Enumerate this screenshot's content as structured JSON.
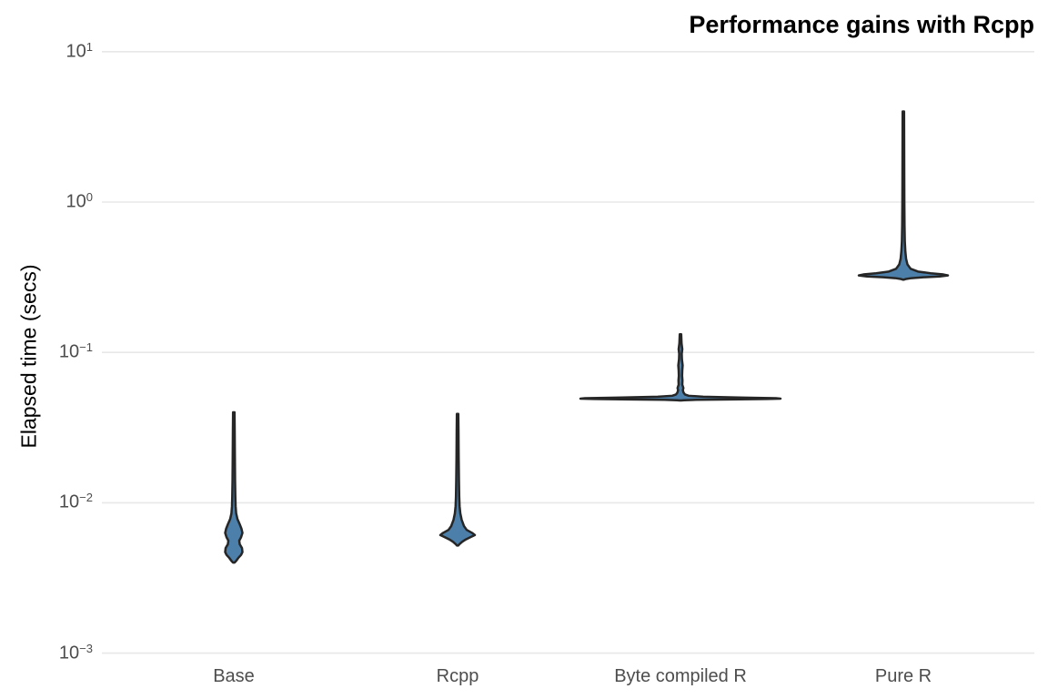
{
  "title": "Performance gains with Rcpp",
  "y_axis": {
    "label": "Elapsed time (secs)",
    "tick_base": "10",
    "ticks": [
      {
        "exponent_display": "1",
        "value": 10
      },
      {
        "exponent_display": "0",
        "value": 1
      },
      {
        "exponent_display": "−1",
        "value": 0.1
      },
      {
        "exponent_display": "−2",
        "value": 0.01
      },
      {
        "exponent_display": "−3",
        "value": 0.001
      }
    ]
  },
  "x_axis": {
    "categories": [
      "Base",
      "Rcpp",
      "Byte compiled R",
      "Pure R"
    ]
  },
  "colors": {
    "violin_fill": "#4c7fa9",
    "violin_stroke": "#262626",
    "gridline": "#e8e8e8",
    "tick_text": "#4d4d4d",
    "title_text": "#000000",
    "background": "#ffffff"
  },
  "chart_data": {
    "type": "violin",
    "title": "Performance gains with Rcpp",
    "xlabel": "",
    "ylabel": "Elapsed time (secs)",
    "yscale": "log10",
    "ylim": [
      0.001,
      10
    ],
    "grid": "major-horizontal-only",
    "legend": "none",
    "categories": [
      "Base",
      "Rcpp",
      "Byte compiled R",
      "Pure R"
    ],
    "series": [
      {
        "name": "Base",
        "min_secs": 0.004,
        "max_secs": 0.04,
        "density_peaks_secs": [
          0.0063,
          0.0049
        ],
        "shape": "thin tail up to 0.04, bimodal double bulge near 0.005-0.0065",
        "profile_value_halfwidth": [
          [
            0.04,
            0.8
          ],
          [
            0.03,
            1.0
          ],
          [
            0.02,
            1.2
          ],
          [
            0.014,
            1.4
          ],
          [
            0.011,
            1.7
          ],
          [
            0.0095,
            2.0
          ],
          [
            0.0085,
            2.6
          ],
          [
            0.0078,
            4.0
          ],
          [
            0.0072,
            6.5
          ],
          [
            0.0067,
            8.5
          ],
          [
            0.0063,
            9.5
          ],
          [
            0.0059,
            8.0
          ],
          [
            0.0056,
            6.0
          ],
          [
            0.0053,
            6.5
          ],
          [
            0.005,
            9.0
          ],
          [
            0.0047,
            9.5
          ],
          [
            0.0045,
            8.0
          ],
          [
            0.0043,
            5.0
          ],
          [
            0.0041,
            2.5
          ],
          [
            0.004,
            0.8
          ]
        ]
      },
      {
        "name": "Rcpp",
        "min_secs": 0.0052,
        "max_secs": 0.039,
        "density_peaks_secs": [
          0.0061
        ],
        "shape": "thin tail up to 0.039, single wide pointed bulge near 0.006",
        "profile_value_halfwidth": [
          [
            0.039,
            0.8
          ],
          [
            0.03,
            1.0
          ],
          [
            0.02,
            1.2
          ],
          [
            0.014,
            1.5
          ],
          [
            0.011,
            1.8
          ],
          [
            0.0095,
            2.2
          ],
          [
            0.0085,
            3.0
          ],
          [
            0.0077,
            4.5
          ],
          [
            0.007,
            7.0
          ],
          [
            0.0066,
            10.0
          ],
          [
            0.0063,
            16.0
          ],
          [
            0.0061,
            19.0
          ],
          [
            0.0059,
            14.0
          ],
          [
            0.0057,
            9.0
          ],
          [
            0.0055,
            5.0
          ],
          [
            0.0053,
            2.0
          ],
          [
            0.0052,
            0.8
          ]
        ]
      },
      {
        "name": "Byte compiled R",
        "min_secs": 0.048,
        "max_secs": 0.132,
        "density_peaks_secs": [
          0.0495
        ],
        "shape": "beaded thin tail up to 0.13, extremely wide flat body at 0.05",
        "profile_value_halfwidth": [
          [
            0.132,
            0.8
          ],
          [
            0.115,
            1.2
          ],
          [
            0.105,
            2.0
          ],
          [
            0.098,
            1.4
          ],
          [
            0.09,
            1.6
          ],
          [
            0.082,
            2.4
          ],
          [
            0.076,
            2.0
          ],
          [
            0.07,
            1.8
          ],
          [
            0.065,
            2.2
          ],
          [
            0.061,
            2.0
          ],
          [
            0.058,
            3.2
          ],
          [
            0.056,
            2.6
          ],
          [
            0.054,
            3.4
          ],
          [
            0.0525,
            5.0
          ],
          [
            0.0515,
            9.0
          ],
          [
            0.0507,
            25.0
          ],
          [
            0.05,
            70.0
          ],
          [
            0.0496,
            105.0
          ],
          [
            0.0493,
            110.0
          ],
          [
            0.049,
            95.0
          ],
          [
            0.0487,
            55.0
          ],
          [
            0.0484,
            18.0
          ],
          [
            0.0481,
            4.0
          ],
          [
            0.0479,
            0.8
          ]
        ]
      },
      {
        "name": "Pure R",
        "min_secs": 0.305,
        "max_secs": 4.0,
        "density_peaks_secs": [
          0.33
        ],
        "shape": "long thin tail up to 4.0, wide flat body at 0.33",
        "profile_value_halfwidth": [
          [
            4.0,
            0.8
          ],
          [
            2.5,
            0.9
          ],
          [
            1.5,
            1.0
          ],
          [
            1.0,
            1.1
          ],
          [
            0.7,
            1.3
          ],
          [
            0.55,
            1.6
          ],
          [
            0.47,
            2.2
          ],
          [
            0.42,
            3.0
          ],
          [
            0.385,
            4.5
          ],
          [
            0.36,
            8.0
          ],
          [
            0.345,
            16.0
          ],
          [
            0.336,
            30.0
          ],
          [
            0.33,
            44.0
          ],
          [
            0.325,
            49.0
          ],
          [
            0.32,
            40.0
          ],
          [
            0.316,
            22.0
          ],
          [
            0.312,
            9.0
          ],
          [
            0.308,
            3.0
          ],
          [
            0.305,
            0.8
          ]
        ]
      }
    ]
  }
}
